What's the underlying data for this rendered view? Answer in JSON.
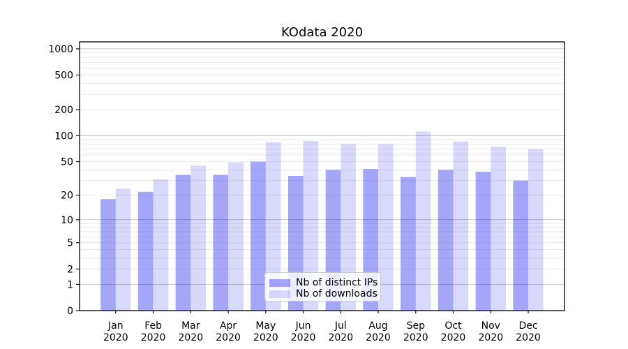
{
  "chart_data": {
    "type": "bar",
    "title": "KOdata 2020",
    "months": [
      "Jan",
      "Feb",
      "Mar",
      "Apr",
      "May",
      "Jun",
      "Jul",
      "Aug",
      "Sep",
      "Oct",
      "Nov",
      "Dec"
    ],
    "year_label": "2020",
    "series": [
      {
        "name": "Nb of distinct IPs",
        "color": "#0000ee",
        "alpha": 0.35,
        "color_hex_on_white": "#a6a6f9",
        "values": [
          18,
          22,
          35,
          35,
          50,
          34,
          40,
          41,
          33,
          40,
          38,
          30
        ]
      },
      {
        "name": "Nb of downloads",
        "color": "#0000ee",
        "alpha": 0.15,
        "color_hex_on_white": "#d9d9fd",
        "values": [
          24,
          31,
          45,
          49,
          84,
          87,
          80,
          80,
          112,
          86,
          75,
          70
        ]
      }
    ],
    "yscale": "log10(1+x)",
    "yticks": [
      0,
      1,
      2,
      5,
      10,
      20,
      50,
      100,
      200,
      500,
      1000
    ],
    "ylim": [
      0,
      1165
    ],
    "xlabel": "",
    "ylabel": "",
    "grid": true,
    "grid_major_color": "#c8c8c8",
    "grid_minor_color": "#eaeaea",
    "legend_position": "lower center (inside axes)",
    "legend_border_color": "#c9c9c9"
  }
}
